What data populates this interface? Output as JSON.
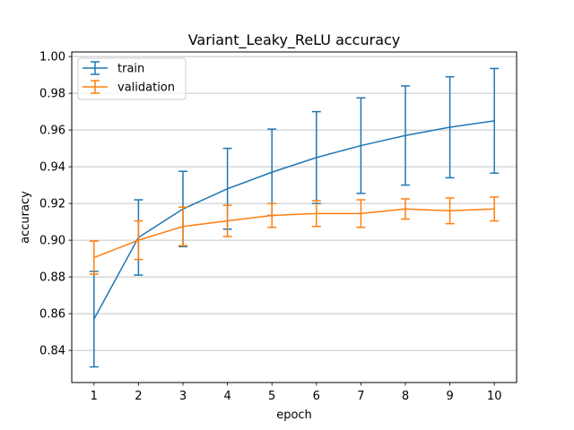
{
  "chart_data": {
    "type": "line",
    "title": "Variant_Leaky_ReLU accuracy",
    "xlabel": "epoch",
    "ylabel": "accuracy",
    "x": [
      1,
      2,
      3,
      4,
      5,
      6,
      7,
      8,
      9,
      10
    ],
    "xlim": [
      0.5,
      10.5
    ],
    "ylim": [
      0.8225,
      1.0025
    ],
    "xticks": [
      1,
      2,
      3,
      4,
      5,
      6,
      7,
      8,
      9,
      10
    ],
    "yticks": [
      0.84,
      0.86,
      0.88,
      0.9,
      0.92,
      0.94,
      0.96,
      0.98,
      1.0
    ],
    "ytick_labels": [
      "0.84",
      "0.86",
      "0.88",
      "0.90",
      "0.92",
      "0.94",
      "0.96",
      "0.98",
      "1.00"
    ],
    "grid": "horizontal",
    "legend_position": "top-left",
    "series": [
      {
        "name": "train",
        "color": "#1f77b4",
        "values": [
          0.857,
          0.9015,
          0.917,
          0.928,
          0.937,
          0.945,
          0.9515,
          0.957,
          0.9615,
          0.965
        ],
        "errors": [
          0.026,
          0.0205,
          0.0205,
          0.022,
          0.0235,
          0.025,
          0.026,
          0.027,
          0.0275,
          0.0285
        ]
      },
      {
        "name": "validation",
        "color": "#ff7f0e",
        "values": [
          0.8905,
          0.9,
          0.9075,
          0.9105,
          0.9135,
          0.9145,
          0.9145,
          0.917,
          0.916,
          0.917
        ],
        "errors": [
          0.009,
          0.0105,
          0.0105,
          0.0085,
          0.0065,
          0.007,
          0.0075,
          0.0055,
          0.007,
          0.0065
        ]
      }
    ]
  }
}
